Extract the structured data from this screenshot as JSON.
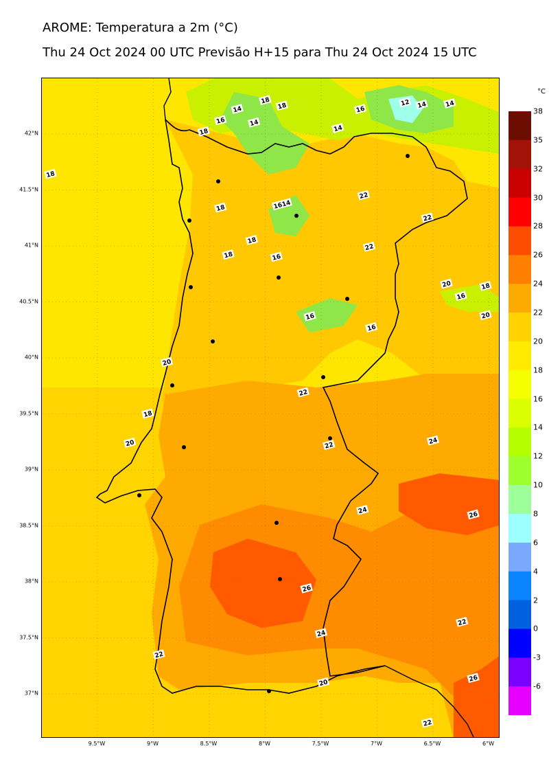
{
  "title": "AROME: Temperatura a 2m (°C)",
  "subtitle": "Thu 24 Oct 2024 00 UTC Previsão H+15 para Thu 24 Oct 2024 15 UTC",
  "map": {
    "latitude_labels": [
      "42°N",
      "41.5°N",
      "41°N",
      "40.5°N",
      "40°N",
      "39.5°N",
      "39°N",
      "38.5°N",
      "38°N",
      "37.5°N",
      "37°N"
    ],
    "latitude_values": [
      42,
      41.5,
      41,
      40.5,
      40,
      39.5,
      39,
      38.5,
      38,
      37.5,
      37
    ],
    "longitude_labels": [
      "9.5°W",
      "9°W",
      "8.5°W",
      "8°W",
      "7.5°W",
      "7°W",
      "6.5°W",
      "6°W"
    ],
    "longitude_values": [
      -9.5,
      -9,
      -8.5,
      -8,
      -7.5,
      -7,
      -6.5,
      -6
    ],
    "contour_labels": [
      {
        "text": "18",
        "lon": -8.0,
        "lat": 42.3
      },
      {
        "text": "18",
        "lon": -7.85,
        "lat": 42.25
      },
      {
        "text": "14",
        "lon": -8.25,
        "lat": 42.22
      },
      {
        "text": "16",
        "lon": -8.4,
        "lat": 42.12
      },
      {
        "text": "14",
        "lon": -8.1,
        "lat": 42.1
      },
      {
        "text": "18",
        "lon": -8.55,
        "lat": 42.02
      },
      {
        "text": "16",
        "lon": -7.15,
        "lat": 42.22
      },
      {
        "text": "12",
        "lon": -6.75,
        "lat": 42.28
      },
      {
        "text": "14",
        "lon": -6.6,
        "lat": 42.26
      },
      {
        "text": "14",
        "lon": -6.35,
        "lat": 42.27
      },
      {
        "text": "14",
        "lon": -7.35,
        "lat": 42.05
      },
      {
        "text": "18",
        "lon": -9.92,
        "lat": 41.64
      },
      {
        "text": "22",
        "lon": -7.12,
        "lat": 41.45
      },
      {
        "text": "1614",
        "lon": -7.85,
        "lat": 41.37
      },
      {
        "text": "18",
        "lon": -8.4,
        "lat": 41.34
      },
      {
        "text": "22",
        "lon": -6.55,
        "lat": 41.25
      },
      {
        "text": "18",
        "lon": -8.12,
        "lat": 41.05
      },
      {
        "text": "22",
        "lon": -7.07,
        "lat": 40.99
      },
      {
        "text": "18",
        "lon": -8.33,
        "lat": 40.92
      },
      {
        "text": "16",
        "lon": -7.9,
        "lat": 40.9
      },
      {
        "text": "20",
        "lon": -6.38,
        "lat": 40.66
      },
      {
        "text": "16",
        "lon": -6.25,
        "lat": 40.55
      },
      {
        "text": "18",
        "lon": -6.03,
        "lat": 40.64
      },
      {
        "text": "16",
        "lon": -7.6,
        "lat": 40.37
      },
      {
        "text": "16",
        "lon": -7.05,
        "lat": 40.27
      },
      {
        "text": "20",
        "lon": -6.03,
        "lat": 40.38
      },
      {
        "text": "20",
        "lon": -8.88,
        "lat": 39.96
      },
      {
        "text": "22",
        "lon": -7.66,
        "lat": 39.69
      },
      {
        "text": "18",
        "lon": -9.05,
        "lat": 39.5
      },
      {
        "text": "20",
        "lon": -9.21,
        "lat": 39.24
      },
      {
        "text": "22",
        "lon": -7.43,
        "lat": 39.22
      },
      {
        "text": "24",
        "lon": -6.5,
        "lat": 39.26
      },
      {
        "text": "24",
        "lon": -7.13,
        "lat": 38.64
      },
      {
        "text": "26",
        "lon": -6.14,
        "lat": 38.6
      },
      {
        "text": "26",
        "lon": -7.63,
        "lat": 37.94
      },
      {
        "text": "24",
        "lon": -7.5,
        "lat": 37.54
      },
      {
        "text": "22",
        "lon": -6.24,
        "lat": 37.64
      },
      {
        "text": "22",
        "lon": -8.95,
        "lat": 37.35
      },
      {
        "text": "20",
        "lon": -7.48,
        "lat": 37.1
      },
      {
        "text": "26",
        "lon": -6.14,
        "lat": 37.14
      },
      {
        "text": "22",
        "lon": -6.55,
        "lat": 36.74
      }
    ]
  },
  "colorbar": {
    "unit": "°C",
    "ticks": [
      "38",
      "35",
      "32",
      "30",
      "28",
      "26",
      "24",
      "22",
      "20",
      "18",
      "16",
      "14",
      "12",
      "10",
      "8",
      "6",
      "4",
      "2",
      "0",
      "-3",
      "-6"
    ],
    "colors": [
      "#6b0d00",
      "#a31206",
      "#c80000",
      "#ff0000",
      "#ff4d00",
      "#ff7f00",
      "#ffaa00",
      "#ffd200",
      "#ffea00",
      "#f5ff00",
      "#d9ff00",
      "#b3ff00",
      "#9dff2e",
      "#9cff9a",
      "#9effff",
      "#7aa8ff",
      "#0a84ff",
      "#0060dd",
      "#0000ff",
      "#7a00ff",
      "#e600ff"
    ]
  },
  "colors": {
    "sea": "#ffe600",
    "sea_warm": "#ffd400",
    "land_north": "#ffc800",
    "land_warm": "#ffaa00",
    "land_hot": "#ff8c00",
    "land_hottest": "#ff5a00",
    "cool_green": "#c8f000",
    "cooler_green": "#8ee648",
    "cold_cyan": "#a0ffea"
  }
}
